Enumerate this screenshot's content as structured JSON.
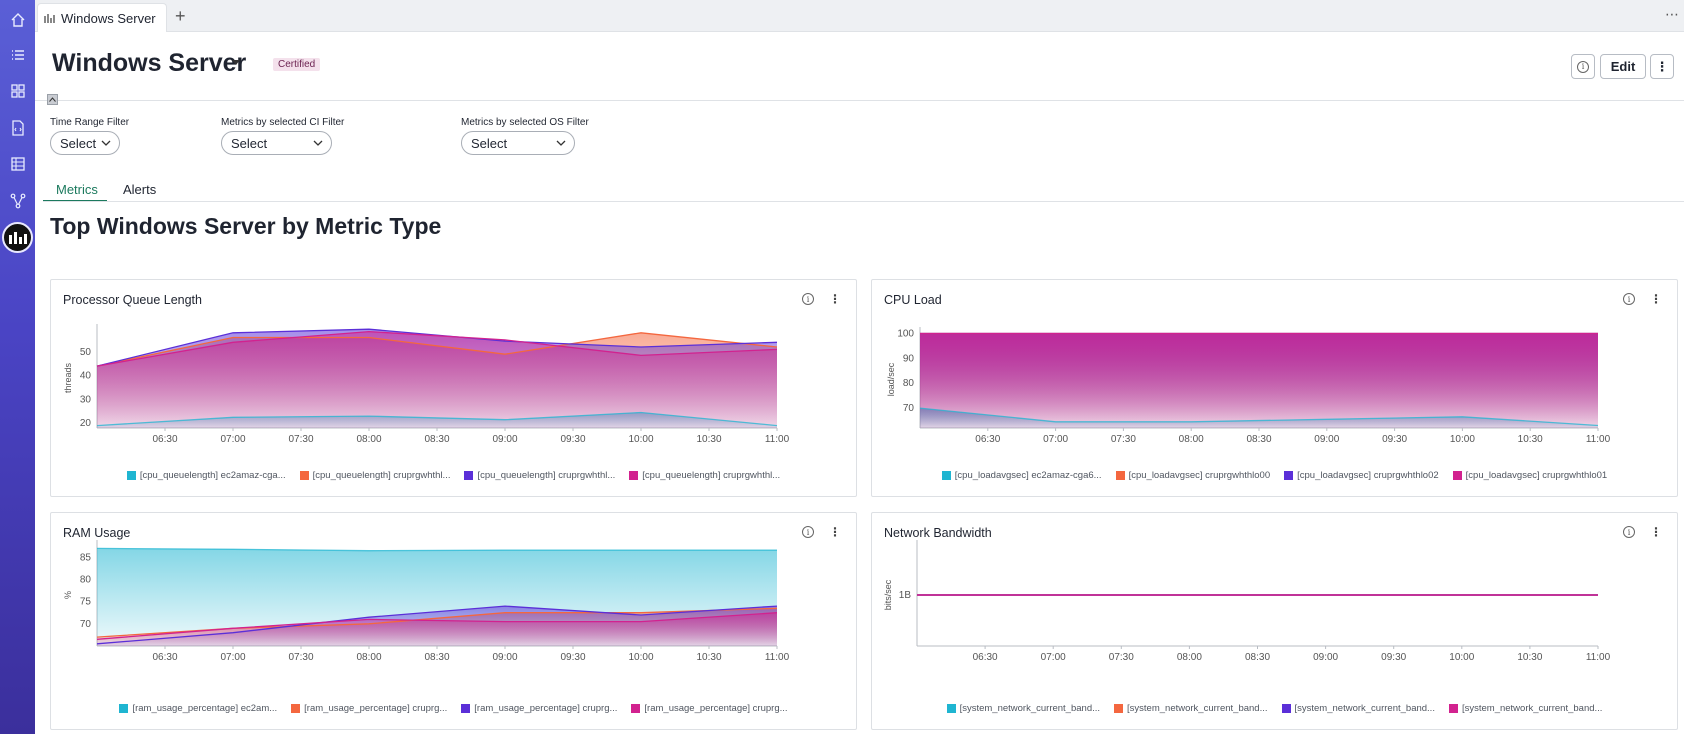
{
  "browser_tab": {
    "title": "Windows Server"
  },
  "page": {
    "title": "Windows Server",
    "badge": "Certified",
    "edit_label": "Edit"
  },
  "filters": [
    {
      "label": "Time Range Filter",
      "value": "Select"
    },
    {
      "label": "Metrics by selected CI Filter",
      "value": "Select"
    },
    {
      "label": "Metrics by selected OS Filter",
      "value": "Select"
    }
  ],
  "tabs": [
    {
      "label": "Metrics",
      "active": true
    },
    {
      "label": "Alerts",
      "active": false
    }
  ],
  "section_title": "Top Windows Server by Metric Type",
  "colors": {
    "cyan": "#1fb5d1",
    "orange": "#f4673f",
    "purple": "#5b2fd8",
    "magenta": "#d2228f",
    "accent": "#1c7a5e"
  },
  "cards": [
    {
      "title": "Processor Queue Length",
      "legend": [
        "[cpu_queuelength] ec2amaz-cga...",
        "[cpu_queuelength] cruprgwhthl...",
        "[cpu_queuelength] cruprgwhthl...",
        "[cpu_queuelength] cruprgwhthl..."
      ]
    },
    {
      "title": "CPU Load",
      "legend": [
        "[cpu_loadavgsec] ec2amaz-cga6...",
        "[cpu_loadavgsec] cruprgwhthlo00",
        "[cpu_loadavgsec] cruprgwhthlo02",
        "[cpu_loadavgsec] cruprgwhthlo01"
      ]
    },
    {
      "title": "RAM Usage",
      "legend": [
        "[ram_usage_percentage] ec2am...",
        "[ram_usage_percentage] cruprg...",
        "[ram_usage_percentage] cruprg...",
        "[ram_usage_percentage] cruprg..."
      ]
    },
    {
      "title": "Network Bandwidth",
      "legend": [
        "[system_network_current_band...",
        "[system_network_current_band...",
        "[system_network_current_band...",
        "[system_network_current_band..."
      ]
    }
  ],
  "chart_data": [
    {
      "type": "area",
      "title": "Processor Queue Length",
      "ylabel": "threads",
      "ylim": [
        18,
        60
      ],
      "yticks": [
        20,
        30,
        40,
        50
      ],
      "x": [
        "06:00",
        "07:00",
        "08:00",
        "09:00",
        "10:00",
        "11:00"
      ],
      "xticks": [
        "06:30",
        "07:00",
        "07:30",
        "08:00",
        "08:30",
        "09:00",
        "09:30",
        "10:00",
        "10:30",
        "11:00"
      ],
      "series": [
        {
          "name": "[cpu_queuelength] ec2amaz-cga...",
          "color": "#1fb5d1",
          "values": [
            19,
            22.5,
            23,
            21.5,
            24.5,
            19
          ]
        },
        {
          "name": "[cpu_queuelength] cruprgwhthl...",
          "color": "#f4673f",
          "values": [
            44,
            56,
            56,
            49,
            58,
            52
          ]
        },
        {
          "name": "[cpu_queuelength] cruprgwhthl...",
          "color": "#5b2fd8",
          "values": [
            44,
            58,
            59.5,
            54.5,
            52,
            54
          ]
        },
        {
          "name": "[cpu_queuelength] cruprgwhthl...",
          "color": "#d2228f",
          "values": [
            44,
            54,
            58.5,
            55,
            48.5,
            51
          ]
        }
      ]
    },
    {
      "type": "area",
      "title": "CPU Load",
      "ylabel": "load/sec",
      "ylim": [
        62,
        101
      ],
      "yticks": [
        70,
        80,
        90,
        100
      ],
      "x": [
        "06:00",
        "07:00",
        "08:00",
        "09:00",
        "10:00",
        "11:00"
      ],
      "xticks": [
        "06:30",
        "07:00",
        "07:30",
        "08:00",
        "08:30",
        "09:00",
        "09:30",
        "10:00",
        "10:30",
        "11:00"
      ],
      "series": [
        {
          "name": "[cpu_loadavgsec] ec2amaz-cga6...",
          "color": "#1fb5d1",
          "values": [
            70,
            64.5,
            64.5,
            65.5,
            66.5,
            63
          ]
        },
        {
          "name": "[cpu_loadavgsec] cruprgwhthlo00",
          "color": "#f4673f",
          "values": [
            100,
            100,
            100,
            100,
            100,
            100
          ]
        },
        {
          "name": "[cpu_loadavgsec] cruprgwhthlo02",
          "color": "#5b2fd8",
          "values": [
            100,
            100,
            100,
            100,
            100,
            100
          ]
        },
        {
          "name": "[cpu_loadavgsec] cruprgwhthlo01",
          "color": "#d2228f",
          "values": [
            100,
            100,
            100,
            100,
            100,
            100
          ]
        }
      ]
    },
    {
      "type": "area",
      "title": "RAM Usage",
      "ylabel": "%",
      "ylim": [
        65,
        88
      ],
      "yticks": [
        70,
        75,
        80,
        85
      ],
      "x": [
        "06:00",
        "07:00",
        "08:00",
        "09:00",
        "10:00",
        "11:00"
      ],
      "xticks": [
        "06:30",
        "07:00",
        "07:30",
        "08:00",
        "08:30",
        "09:00",
        "09:30",
        "10:00",
        "10:30",
        "11:00"
      ],
      "series": [
        {
          "name": "[ram_usage_percentage] ec2am...",
          "color": "#1fb5d1",
          "values": [
            87,
            86.8,
            86.5,
            86.6,
            86.6,
            86.6
          ]
        },
        {
          "name": "[ram_usage_percentage] cruprg...",
          "color": "#f4673f",
          "values": [
            67,
            69,
            70,
            72.5,
            72.5,
            73.5
          ]
        },
        {
          "name": "[ram_usage_percentage] cruprg...",
          "color": "#5b2fd8",
          "values": [
            65.5,
            68,
            71.5,
            74,
            72,
            74
          ]
        },
        {
          "name": "[ram_usage_percentage] cruprg...",
          "color": "#d2228f",
          "values": [
            66.5,
            69,
            71,
            70.5,
            70.5,
            72.5
          ]
        }
      ]
    },
    {
      "type": "line",
      "title": "Network Bandwidth",
      "ylabel": "bits/sec",
      "ylim": [
        0,
        2
      ],
      "yticks": [
        "1B"
      ],
      "x": [
        "06:00",
        "07:00",
        "08:00",
        "09:00",
        "10:00",
        "11:00"
      ],
      "xticks": [
        "06:30",
        "07:00",
        "07:30",
        "08:00",
        "08:30",
        "09:00",
        "09:30",
        "10:00",
        "10:30",
        "11:00"
      ],
      "series": [
        {
          "name": "[system_network_current_band...",
          "color": "#1fb5d1",
          "values": [
            1,
            1,
            1,
            1,
            1,
            1
          ]
        },
        {
          "name": "[system_network_current_band...",
          "color": "#f4673f",
          "values": [
            1,
            1,
            1,
            1,
            1,
            1
          ]
        },
        {
          "name": "[system_network_current_band...",
          "color": "#5b2fd8",
          "values": [
            1,
            1,
            1,
            1,
            1,
            1
          ]
        },
        {
          "name": "[system_network_current_band...",
          "color": "#d2228f",
          "values": [
            1,
            1,
            1,
            1,
            1,
            1
          ]
        }
      ]
    }
  ]
}
